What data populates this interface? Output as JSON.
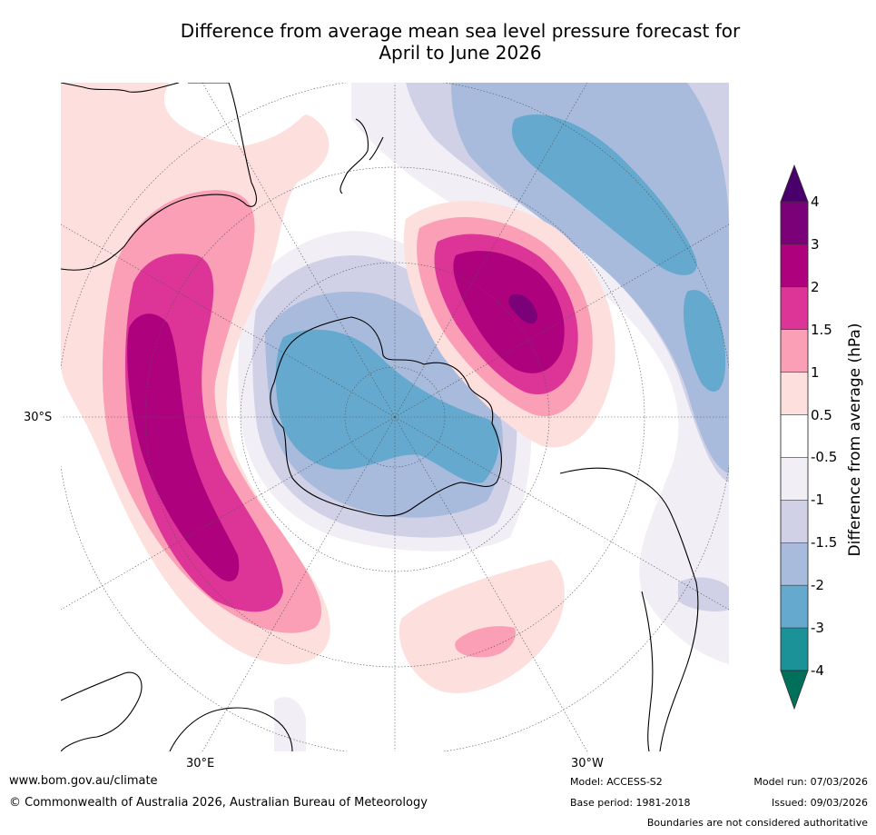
{
  "title": {
    "line1": "Difference from average mean sea level pressure forecast for",
    "line2": "April to June 2026"
  },
  "map": {
    "projection": "south-polar-stereographic",
    "lat_label": "30°S",
    "lon_labels": {
      "east": "30°E",
      "west": "30°W"
    },
    "colors": {
      "neg_4_below": "#00705a",
      "neg_4_to_3": "#1b9198",
      "neg_3_to_2": "#66a9cf",
      "neg_2_to_1_5": "#a8bbdc",
      "neg_1_5_to_1": "#d0d1e6",
      "neg_1_to_0_5": "#f1eef6",
      "neutral": "#ffffff",
      "pos_0_5_to_1": "#fde0dd",
      "pos_1_to_1_5": "#fa9fb5",
      "pos_1_5_to_2": "#dd3497",
      "pos_2_to_3": "#ae017e",
      "pos_3_to_4": "#7a0177",
      "pos_4_above": "#49006a"
    }
  },
  "colorbar": {
    "label": "Difference from average (hPa)",
    "ticks": [
      "4",
      "3",
      "2",
      "1.5",
      "1",
      "0.5",
      "-0.5",
      "-1",
      "-1.5",
      "-2",
      "-3",
      "-4"
    ],
    "colors": [
      "#49006a",
      "#7a0177",
      "#ae017e",
      "#dd3497",
      "#fa9fb5",
      "#fde0dd",
      "#ffffff",
      "#f1eef6",
      "#d0d1e6",
      "#a8bbdc",
      "#66a9cf",
      "#1b9198",
      "#00705a"
    ]
  },
  "footer": {
    "url": "www.bom.gov.au/climate",
    "copyright": "© Commonwealth of Australia 2026, Australian Bureau of Meteorology",
    "model": "Model: ACCESS-S2",
    "base_period": "Base period: 1981-2018",
    "model_run": "Model run: 07/03/2026",
    "issued": "Issued: 09/03/2026",
    "disclaimer": "Boundaries are not considered authoritative"
  }
}
